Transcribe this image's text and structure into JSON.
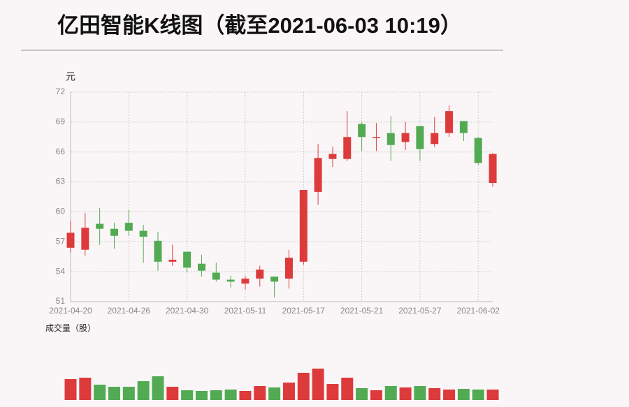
{
  "chart_data": {
    "type": "candlestick",
    "title": "亿田智能K线图（截至2021-06-03 10:19）",
    "y_unit": "元",
    "volume_label": "成交量（股）",
    "categories": [
      "2021-04-20",
      null,
      null,
      null,
      "2021-04-26",
      null,
      null,
      null,
      "2021-04-30",
      null,
      null,
      null,
      "2021-05-11",
      null,
      null,
      null,
      "2021-05-17",
      null,
      null,
      null,
      "2021-05-21",
      null,
      null,
      null,
      "2021-05-27",
      null,
      null,
      null,
      "2021-06-02",
      null
    ],
    "open": [
      56.4,
      56.2,
      58.8,
      58.3,
      58.9,
      58.1,
      57.1,
      55.0,
      56.0,
      54.8,
      53.9,
      53.2,
      52.8,
      53.3,
      53.5,
      53.3,
      55.0,
      62.0,
      65.3,
      65.3,
      68.8,
      67.4,
      67.9,
      67.0,
      68.6,
      66.8,
      67.9,
      69.1,
      67.4,
      62.9
    ],
    "close": [
      57.9,
      58.4,
      58.3,
      57.6,
      58.1,
      57.5,
      55.0,
      55.2,
      54.4,
      54.1,
      53.2,
      53.0,
      53.3,
      54.2,
      53.0,
      55.4,
      62.2,
      65.4,
      65.8,
      67.5,
      67.5,
      67.5,
      66.7,
      67.9,
      66.3,
      67.9,
      70.1,
      67.9,
      64.9,
      65.8
    ],
    "high": [
      59.1,
      59.9,
      60.4,
      58.9,
      60.2,
      58.7,
      58.0,
      56.7,
      56.0,
      55.7,
      54.9,
      53.6,
      53.6,
      54.6,
      53.5,
      56.2,
      62.2,
      66.8,
      66.5,
      70.1,
      69.0,
      68.9,
      69.6,
      69.0,
      68.6,
      69.5,
      70.7,
      69.1,
      67.5,
      65.9
    ],
    "low": [
      55.9,
      55.6,
      56.7,
      56.3,
      57.6,
      54.9,
      54.1,
      54.6,
      53.9,
      53.5,
      53.0,
      52.4,
      52.2,
      52.5,
      51.4,
      52.3,
      54.7,
      60.7,
      64.5,
      65.1,
      66.1,
      66.1,
      65.1,
      66.2,
      65.1,
      66.5,
      67.5,
      67.1,
      64.7,
      62.5
    ],
    "volume": [
      30,
      32,
      22,
      19,
      19,
      27,
      34,
      19,
      14,
      13,
      14,
      15,
      13,
      20,
      18,
      25,
      39,
      45,
      23,
      32,
      17,
      14,
      20,
      18,
      20,
      17,
      15,
      16,
      15,
      15
    ],
    "up_color": "#dd3b3b",
    "down_color": "#52ab52",
    "ylim": [
      51,
      72
    ],
    "yticks": [
      51,
      54,
      57,
      60,
      63,
      66,
      69,
      72
    ],
    "grid": true
  }
}
